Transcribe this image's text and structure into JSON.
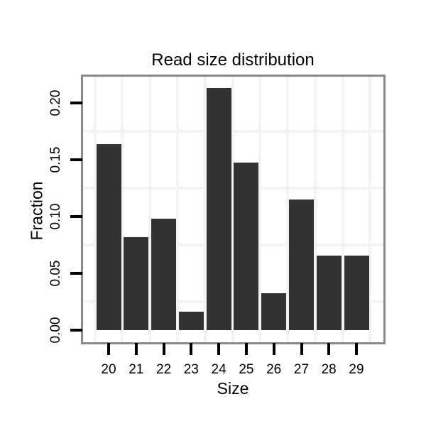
{
  "chart_data": {
    "type": "bar",
    "title": "Read size distribution",
    "xlabel": "Size",
    "ylabel": "Fraction",
    "categories": [
      "20",
      "21",
      "22",
      "23",
      "24",
      "25",
      "26",
      "27",
      "28",
      "29"
    ],
    "values": [
      0.1639,
      0.082,
      0.0984,
      0.0164,
      0.2131,
      0.1475,
      0.0328,
      0.1148,
      0.0656,
      0.0656
    ],
    "ytick_labels": [
      "0.00",
      "0.05",
      "0.10",
      "0.15",
      "0.20"
    ],
    "ytick_values": [
      0.0,
      0.05,
      0.1,
      0.15,
      0.2
    ],
    "ylim": [
      0,
      0.223
    ],
    "grid": "minor-gridlines-only",
    "legend": "none",
    "colors": {
      "bar": "#333333",
      "gridline": "#f3f3f3",
      "panel_border": "#8a8a8a",
      "tick": "#000000",
      "text": "#000000",
      "background": "#ffffff"
    }
  }
}
